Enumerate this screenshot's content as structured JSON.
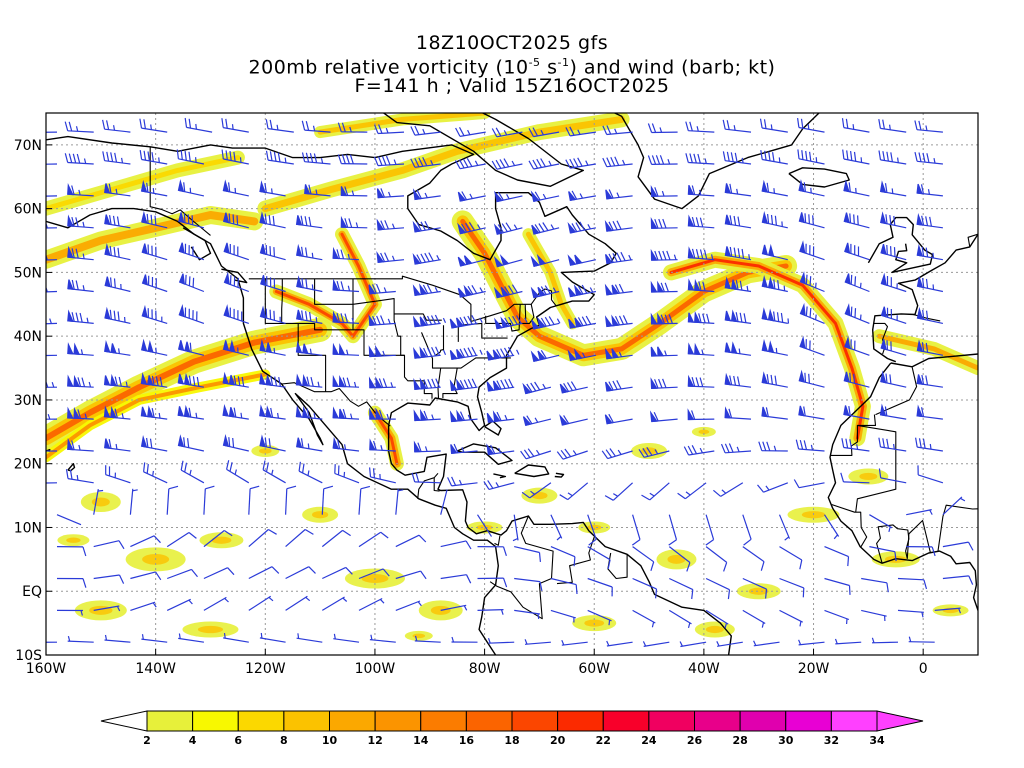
{
  "title": {
    "line1": "18Z10OCT2025 gfs",
    "line2_pre": "200mb relative vorticity (10",
    "line2_exp1": "-5",
    "line2_mid": " s",
    "line2_exp2": "-1",
    "line2_post": ") and wind (barb; kt)",
    "line3": "F=141 h ; Valid 15Z16OCT2025"
  },
  "map": {
    "lon_range": [
      -160,
      10
    ],
    "lat_range": [
      -10,
      75
    ],
    "lat_labels": [
      "70N",
      "60N",
      "50N",
      "40N",
      "30N",
      "20N",
      "10N",
      "EQ",
      "10S"
    ],
    "lat_values": [
      70,
      60,
      50,
      40,
      30,
      20,
      10,
      0,
      -10
    ],
    "lon_labels": [
      "160W",
      "140W",
      "120W",
      "100W",
      "80W",
      "60W",
      "40W",
      "20W",
      "0"
    ],
    "lon_values": [
      -160,
      -140,
      -120,
      -100,
      -80,
      -60,
      -40,
      -20,
      0
    ],
    "barb_color": "#2b3bd8",
    "coast_color": "#000000",
    "grid_color": "#9a9a9a"
  },
  "colorbar": {
    "labels": [
      "2",
      "4",
      "6",
      "8",
      "10",
      "12",
      "14",
      "16",
      "18",
      "20",
      "22",
      "24",
      "26",
      "28",
      "30",
      "32",
      "34"
    ],
    "colors": [
      "#e7f03a",
      "#f8f800",
      "#fbd800",
      "#fbc200",
      "#fba800",
      "#fb9400",
      "#fb7c00",
      "#fb6400",
      "#fb4600",
      "#fb2a00",
      "#f8002a",
      "#f00060",
      "#e8008a",
      "#e000ae",
      "#e800d4",
      "#ff40ff"
    ]
  }
}
